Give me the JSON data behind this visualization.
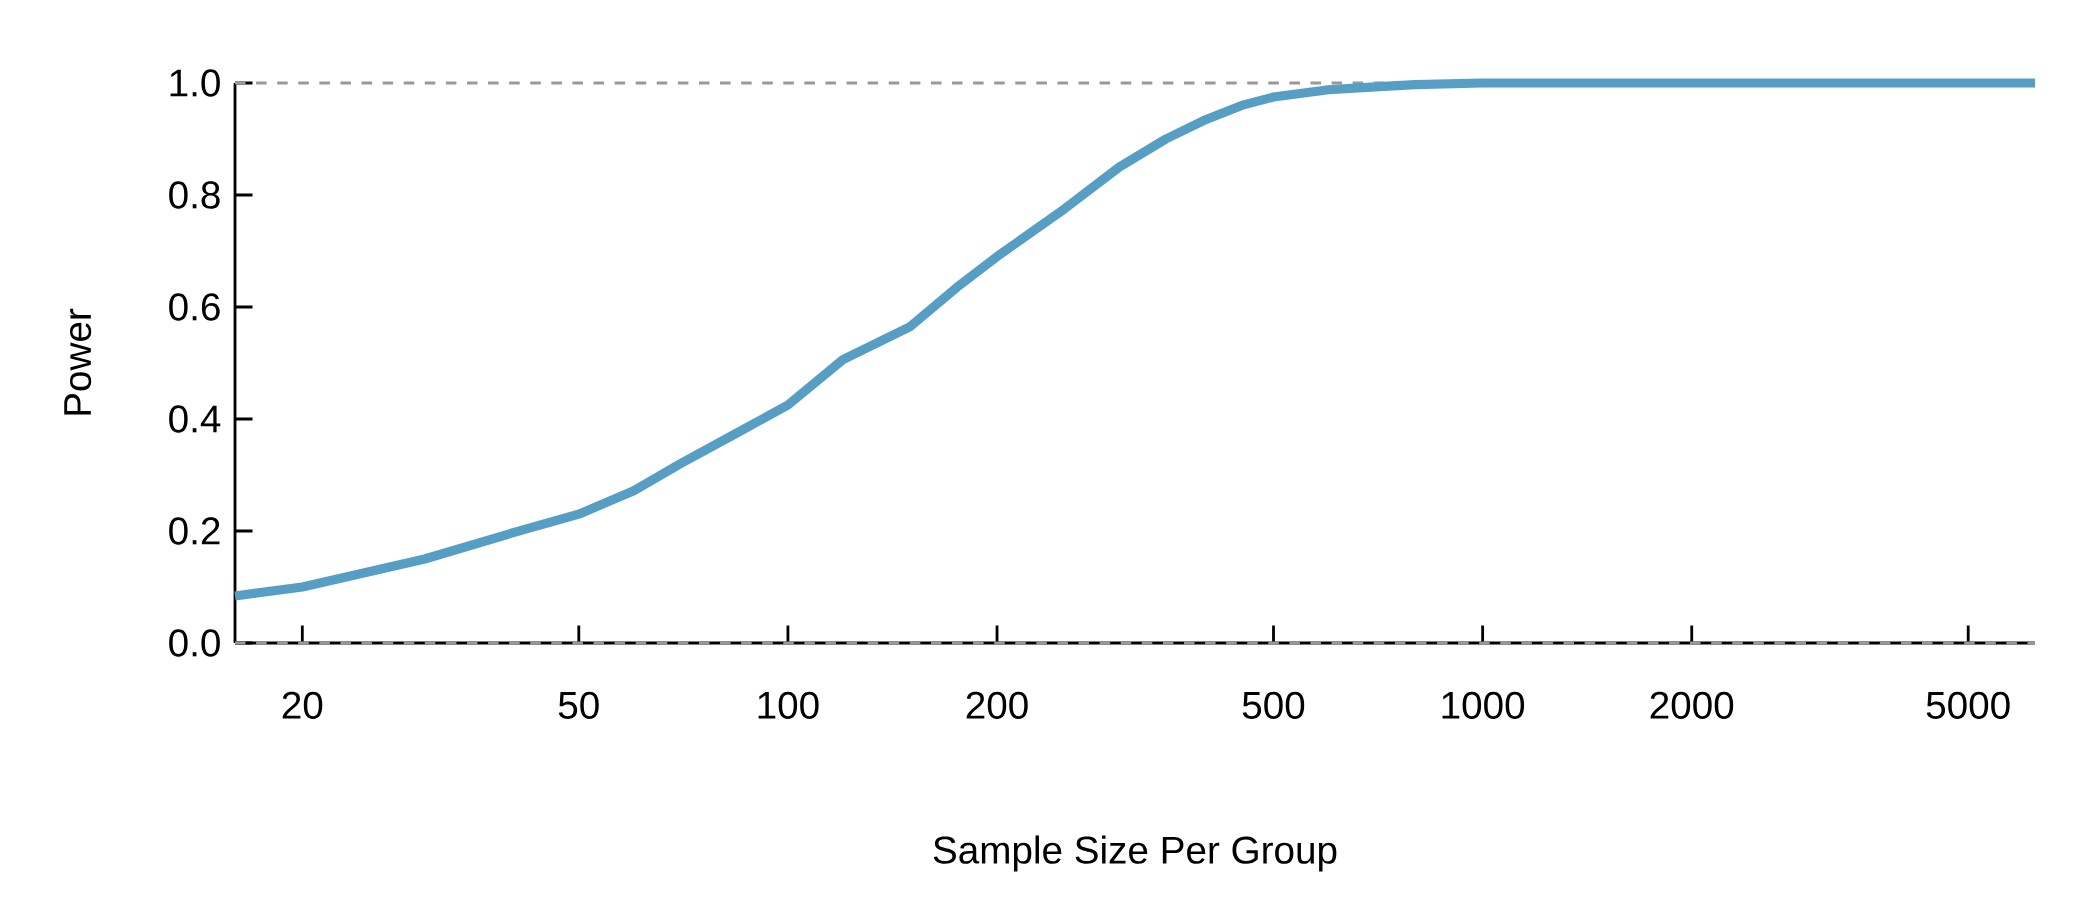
{
  "chart_data": {
    "type": "line",
    "xlabel": "Sample Size Per Group",
    "ylabel": "Power",
    "log": "x",
    "x": [
      16,
      20,
      30,
      40,
      50,
      60,
      70,
      85,
      100,
      120,
      150,
      175,
      200,
      250,
      300,
      350,
      400,
      450,
      500,
      600,
      700,
      800,
      1000,
      6240
    ],
    "series": [
      {
        "color": "#569ec3",
        "values": [
          0.084,
          0.1,
          0.15,
          0.196,
          0.23,
          0.272,
          0.32,
          0.377,
          0.425,
          0.506,
          0.565,
          0.635,
          0.69,
          0.775,
          0.85,
          0.9,
          0.935,
          0.96,
          0.975,
          0.988,
          0.993,
          0.997,
          1.0,
          1.0
        ]
      }
    ],
    "xlim": [
      16,
      6240
    ],
    "ylim": [
      0,
      1
    ],
    "xticks": [
      20,
      50,
      100,
      200,
      500,
      1000,
      2000,
      5000
    ],
    "yticks": [
      {
        "value": 0,
        "label": "0.0"
      },
      {
        "value": 0.2,
        "label": "0.2"
      },
      {
        "value": 0.4,
        "label": "0.4"
      },
      {
        "value": 0.6,
        "label": "0.6"
      },
      {
        "value": 0.8,
        "label": "0.8"
      },
      {
        "value": 1,
        "label": "1.0"
      }
    ],
    "ref_lines": [
      {
        "axis": "y",
        "value": 0,
        "color": "#999999",
        "line_style": "dashed"
      },
      {
        "axis": "y",
        "value": 1,
        "color": "#999999",
        "line_style": "dashed"
      }
    ],
    "line_style": "solid",
    "marker": "none"
  }
}
